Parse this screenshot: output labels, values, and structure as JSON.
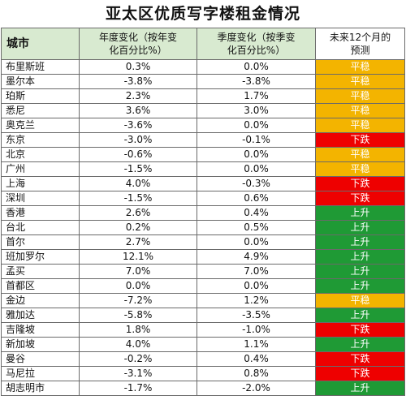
{
  "title": "亚太区优质写字楼租金情况",
  "columns": {
    "city": "城市",
    "yoy_1": "年度变化（按年变",
    "yoy_2": "化百分比%）",
    "qoq_1": "季度变化（按季变",
    "qoq_2": "化百分比%）",
    "forecast_1": "未来12个月的",
    "forecast_2": "预测"
  },
  "status_colors": {
    "平稳": "#f3b400",
    "下跌": "#ee0000",
    "上升": "#1f9a35"
  },
  "rows": [
    {
      "city": "布里斯班",
      "yoy": "0.3%",
      "qoq": "0.0%",
      "forecast": "平稳"
    },
    {
      "city": "墨尔本",
      "yoy": "-3.8%",
      "qoq": "-3.8%",
      "forecast": "平稳"
    },
    {
      "city": "珀斯",
      "yoy": "2.3%",
      "qoq": "1.7%",
      "forecast": "平稳"
    },
    {
      "city": "悉尼",
      "yoy": "3.6%",
      "qoq": "3.0%",
      "forecast": "平稳"
    },
    {
      "city": "奥克兰",
      "yoy": "-3.6%",
      "qoq": "0.0%",
      "forecast": "平稳"
    },
    {
      "city": "东京",
      "yoy": "-3.0%",
      "qoq": "-0.1%",
      "forecast": "下跌"
    },
    {
      "city": "北京",
      "yoy": "-0.6%",
      "qoq": "0.0%",
      "forecast": "平稳"
    },
    {
      "city": "广州",
      "yoy": "-1.5%",
      "qoq": "0.0%",
      "forecast": "平稳"
    },
    {
      "city": "上海",
      "yoy": "4.0%",
      "qoq": "-0.3%",
      "forecast": "下跌"
    },
    {
      "city": "深圳",
      "yoy": "-1.5%",
      "qoq": "0.6%",
      "forecast": "下跌"
    },
    {
      "city": "香港",
      "yoy": "2.6%",
      "qoq": "0.4%",
      "forecast": "上升"
    },
    {
      "city": "台北",
      "yoy": "0.2%",
      "qoq": "0.5%",
      "forecast": "上升"
    },
    {
      "city": "首尔",
      "yoy": "2.7%",
      "qoq": "0.0%",
      "forecast": "上升"
    },
    {
      "city": "班加罗尔",
      "yoy": "12.1%",
      "qoq": "4.9%",
      "forecast": "上升"
    },
    {
      "city": "孟买",
      "yoy": "7.0%",
      "qoq": "7.0%",
      "forecast": "上升"
    },
    {
      "city": "首都区",
      "yoy": "0.0%",
      "qoq": "0.0%",
      "forecast": "上升"
    },
    {
      "city": "金边",
      "yoy": "-7.2%",
      "qoq": "1.2%",
      "forecast": "平稳"
    },
    {
      "city": "雅加达",
      "yoy": "-5.8%",
      "qoq": "-3.5%",
      "forecast": "上升"
    },
    {
      "city": "吉隆坡",
      "yoy": "1.8%",
      "qoq": "-1.0%",
      "forecast": "下跌"
    },
    {
      "city": "新加坡",
      "yoy": "4.0%",
      "qoq": "1.1%",
      "forecast": "上升"
    },
    {
      "city": "曼谷",
      "yoy": "-0.2%",
      "qoq": "0.4%",
      "forecast": "下跌"
    },
    {
      "city": "马尼拉",
      "yoy": "-3.1%",
      "qoq": "0.8%",
      "forecast": "下跌"
    },
    {
      "city": "胡志明市",
      "yoy": "-1.7%",
      "qoq": "-2.0%",
      "forecast": "上升"
    }
  ]
}
